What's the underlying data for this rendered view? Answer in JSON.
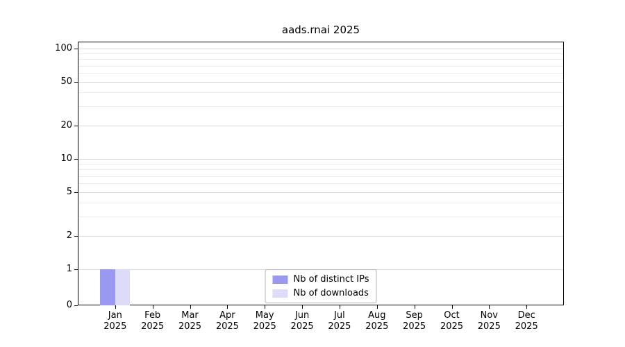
{
  "chart_data": {
    "type": "bar",
    "title": "aads.rnai 2025",
    "year_label": "2025",
    "categories": [
      "Jan",
      "Feb",
      "Mar",
      "Apr",
      "May",
      "Jun",
      "Jul",
      "Aug",
      "Sep",
      "Oct",
      "Nov",
      "Dec"
    ],
    "series": [
      {
        "name": "Nb of distinct IPs",
        "color": "#9999f1",
        "values": [
          1,
          0,
          0,
          0,
          0,
          0,
          0,
          0,
          0,
          0,
          0,
          0
        ]
      },
      {
        "name": "Nb of downloads",
        "color": "#dcdcf9",
        "values": [
          1,
          0,
          0,
          0,
          0,
          0,
          0,
          0,
          0,
          0,
          0,
          0
        ]
      }
    ],
    "y_axis": {
      "scale": "symlog",
      "ticks": [
        0,
        1,
        2,
        5,
        10,
        20,
        50,
        100
      ],
      "minor_gridlines": [
        1,
        2,
        3,
        4,
        5,
        6,
        7,
        8,
        9,
        10,
        20,
        30,
        40,
        50,
        60,
        70,
        80,
        90,
        100
      ],
      "range": [
        0,
        100
      ]
    },
    "legend": {
      "position": "lower center"
    },
    "grid": true,
    "colors": {
      "grid_major": "#d8d8d8",
      "grid_minor": "#ebebeb",
      "spine": "#000000",
      "background": "#ffffff"
    }
  }
}
